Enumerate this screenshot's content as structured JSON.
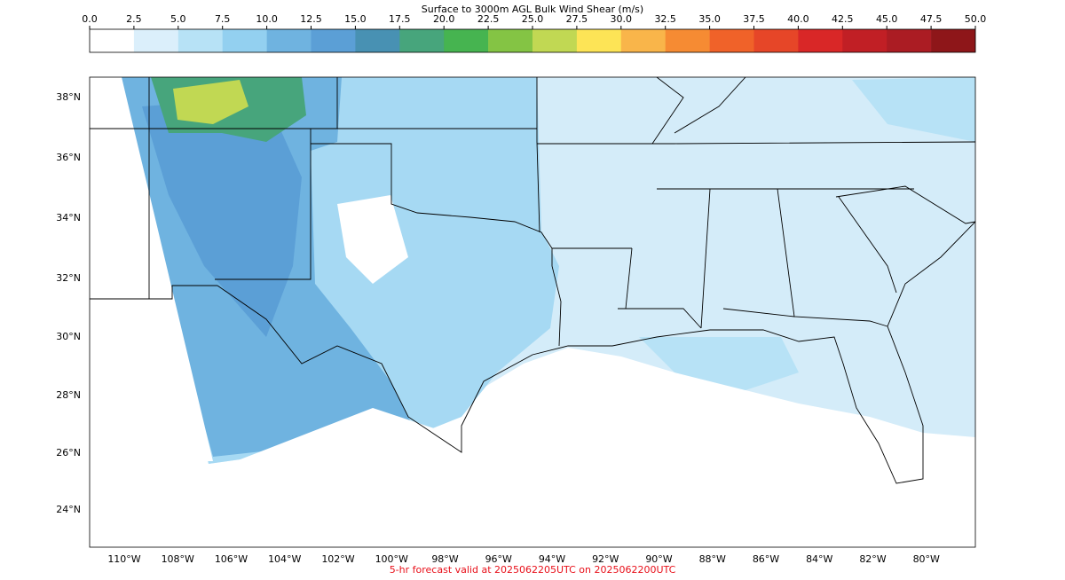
{
  "colorbar": {
    "title": "Surface to 3000m AGL Bulk Wind Shear (m/s)",
    "ticks": [
      "0.0",
      "2.5",
      "5.0",
      "7.5",
      "10.0",
      "12.5",
      "15.0",
      "17.5",
      "20.0",
      "22.5",
      "25.0",
      "27.5",
      "30.0",
      "32.5",
      "35.0",
      "37.5",
      "40.0",
      "42.5",
      "45.0",
      "47.5",
      "50.0"
    ],
    "colors": [
      "#ffffff",
      "#dbeffb",
      "#b7e2f6",
      "#93d0f0",
      "#6fb3e0",
      "#5b9fd6",
      "#4891b3",
      "#47a57c",
      "#46b450",
      "#84c444",
      "#c1d853",
      "#fde456",
      "#f9b54a",
      "#f68b33",
      "#f06229",
      "#e64628",
      "#d92727",
      "#c11f25",
      "#ab1c23",
      "#8e1619"
    ]
  },
  "map": {
    "lat_labels": [
      "38°N",
      "36°N",
      "34°N",
      "32°N",
      "30°N",
      "28°N",
      "26°N",
      "24°N"
    ],
    "lon_labels": [
      "110°W",
      "108°W",
      "106°W",
      "104°W",
      "102°W",
      "100°W",
      "98°W",
      "96°W",
      "94°W",
      "92°W",
      "90°W",
      "88°W",
      "86°W",
      "84°W",
      "82°W",
      "80°W"
    ]
  },
  "footer": "5-hr forecast valid at 2025062205UTC on 2025062200UTC"
}
